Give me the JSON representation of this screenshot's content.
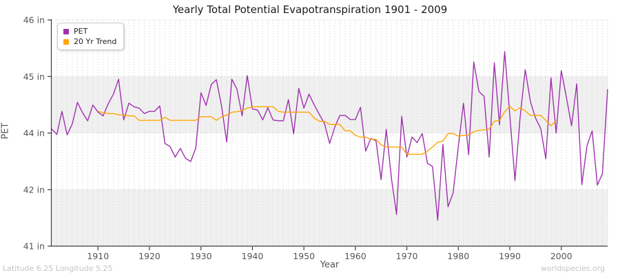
{
  "figure": {
    "title": "Yearly Total Potential Evapotranspiration 1901 - 2009",
    "footer_left": "Latitude 6.25 Longitude 5.25",
    "footer_right": "worldspecies.org"
  },
  "axes": {
    "x_label": "Year",
    "y_label": "PET",
    "x_ticks": [
      "1910",
      "1920",
      "1930",
      "1940",
      "1950",
      "1960",
      "1970",
      "1980",
      "1990",
      "2000"
    ],
    "y_ticks": [
      {
        "label": "46 in",
        "value": 46
      },
      {
        "label": "45 in",
        "value": 44.75
      },
      {
        "label": "44 in",
        "value": 43.5
      },
      {
        "label": "42 in",
        "value": 42.25
      },
      {
        "label": "41 in",
        "value": 41
      }
    ]
  },
  "style": {
    "band_color": "#f0f0f0",
    "grid_color": "#d8d8d8",
    "spine_color": "#3a3a3a",
    "tick_label_color": "#555555"
  },
  "chart_data": {
    "type": "line",
    "title": "Yearly Total Potential Evapotranspiration 1901 - 2009",
    "xlabel": "Year",
    "ylabel": "PET",
    "x_range": [
      1901,
      2009
    ],
    "y_scale": {
      "min": 41,
      "max": 46,
      "unit": "in"
    },
    "grid": "dashed yearly vertical lines, alternating horizontal bands",
    "legend_position": "top-left",
    "series": [
      {
        "name": "PET",
        "color": "#9e30ad",
        "x_start": 1901,
        "values": [
          43.59,
          43.47,
          43.98,
          43.46,
          43.7,
          44.18,
          43.95,
          43.77,
          44.12,
          43.96,
          43.88,
          44.15,
          44.36,
          44.69,
          43.79,
          44.16,
          44.08,
          44.05,
          43.93,
          43.98,
          43.98,
          44.1,
          43.27,
          43.2,
          42.97,
          43.16,
          42.94,
          42.87,
          43.17,
          44.39,
          44.11,
          44.57,
          44.68,
          44.1,
          43.3,
          44.69,
          44.47,
          43.88,
          44.77,
          44.03,
          44.01,
          43.79,
          44.06,
          43.79,
          43.77,
          43.77,
          44.24,
          43.48,
          44.49,
          44.05,
          44.36,
          44.12,
          43.91,
          43.71,
          43.27,
          43.63,
          43.89,
          43.89,
          43.8,
          43.8,
          44.07,
          43.1,
          43.38,
          43.33,
          42.47,
          43.58,
          42.5,
          41.7,
          43.87,
          42.97,
          43.41,
          43.29,
          43.49,
          42.83,
          42.76,
          41.57,
          43.25,
          41.87,
          42.18,
          43.2,
          44.16,
          43.02,
          45.07,
          44.42,
          44.31,
          42.97,
          45.05,
          43.68,
          45.3,
          43.9,
          42.45,
          43.85,
          44.9,
          44.2,
          43.83,
          43.6,
          42.93,
          44.72,
          43.5,
          44.88,
          44.29,
          43.66,
          44.59,
          42.36,
          43.22,
          43.55,
          42.35,
          42.6,
          44.47
        ]
      },
      {
        "name": "20 Yr Trend",
        "color": "#ffa500",
        "x_start": 1910,
        "values": [
          43.98,
          43.95,
          43.93,
          43.93,
          43.9,
          43.9,
          43.88,
          43.88,
          43.78,
          43.78,
          43.78,
          43.78,
          43.78,
          43.85,
          43.78,
          43.78,
          43.78,
          43.78,
          43.78,
          43.78,
          43.86,
          43.86,
          43.86,
          43.78,
          43.86,
          43.9,
          43.96,
          43.97,
          44.0,
          44.05,
          44.08,
          44.08,
          44.08,
          44.08,
          44.08,
          43.98,
          43.96,
          43.96,
          43.96,
          43.96,
          43.96,
          43.96,
          43.83,
          43.76,
          43.76,
          43.69,
          43.69,
          43.69,
          43.55,
          43.55,
          43.45,
          43.41,
          43.41,
          43.36,
          43.36,
          43.24,
          43.19,
          43.19,
          43.19,
          43.19,
          43.03,
          43.03,
          43.03,
          43.03,
          43.1,
          43.19,
          43.3,
          43.32,
          43.49,
          43.49,
          43.43,
          43.45,
          43.46,
          43.53,
          43.56,
          43.57,
          43.59,
          43.76,
          43.78,
          43.97,
          44.09,
          43.99,
          44.06,
          43.99,
          43.89,
          43.89,
          43.89,
          43.78,
          43.66,
          43.78
        ]
      }
    ]
  }
}
